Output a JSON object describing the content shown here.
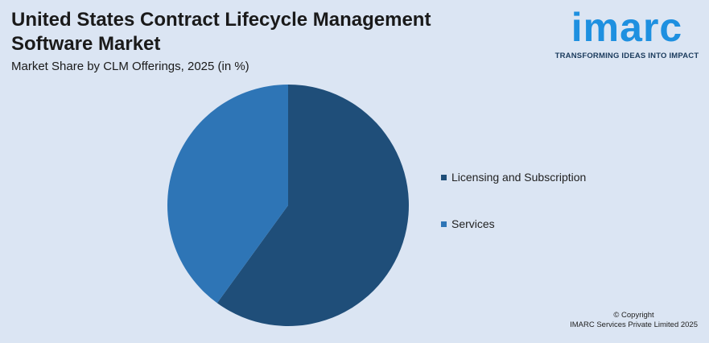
{
  "header": {
    "title": "United States Contract Lifecycle Management Software Market",
    "subtitle": "Market Share by CLM Offerings, 2025 (in %)"
  },
  "logo": {
    "word": "imarc",
    "tagline": "TRANSFORMING IDEAS INTO IMPACT",
    "color": "#1e90e0"
  },
  "chart_data": {
    "type": "pie",
    "title": "United States Contract Lifecycle Management Software Market",
    "subtitle": "Market Share by CLM Offerings, 2025 (in %)",
    "legend_position": "right",
    "categories": [
      "Licensing and Subscription",
      "Services"
    ],
    "values": [
      60,
      40
    ],
    "colors": [
      "#1f4e79",
      "#2e75b6"
    ]
  },
  "footer": {
    "copyright_line1": "© Copyright",
    "copyright_line2": "IMARC Services Private Limited 2025"
  }
}
